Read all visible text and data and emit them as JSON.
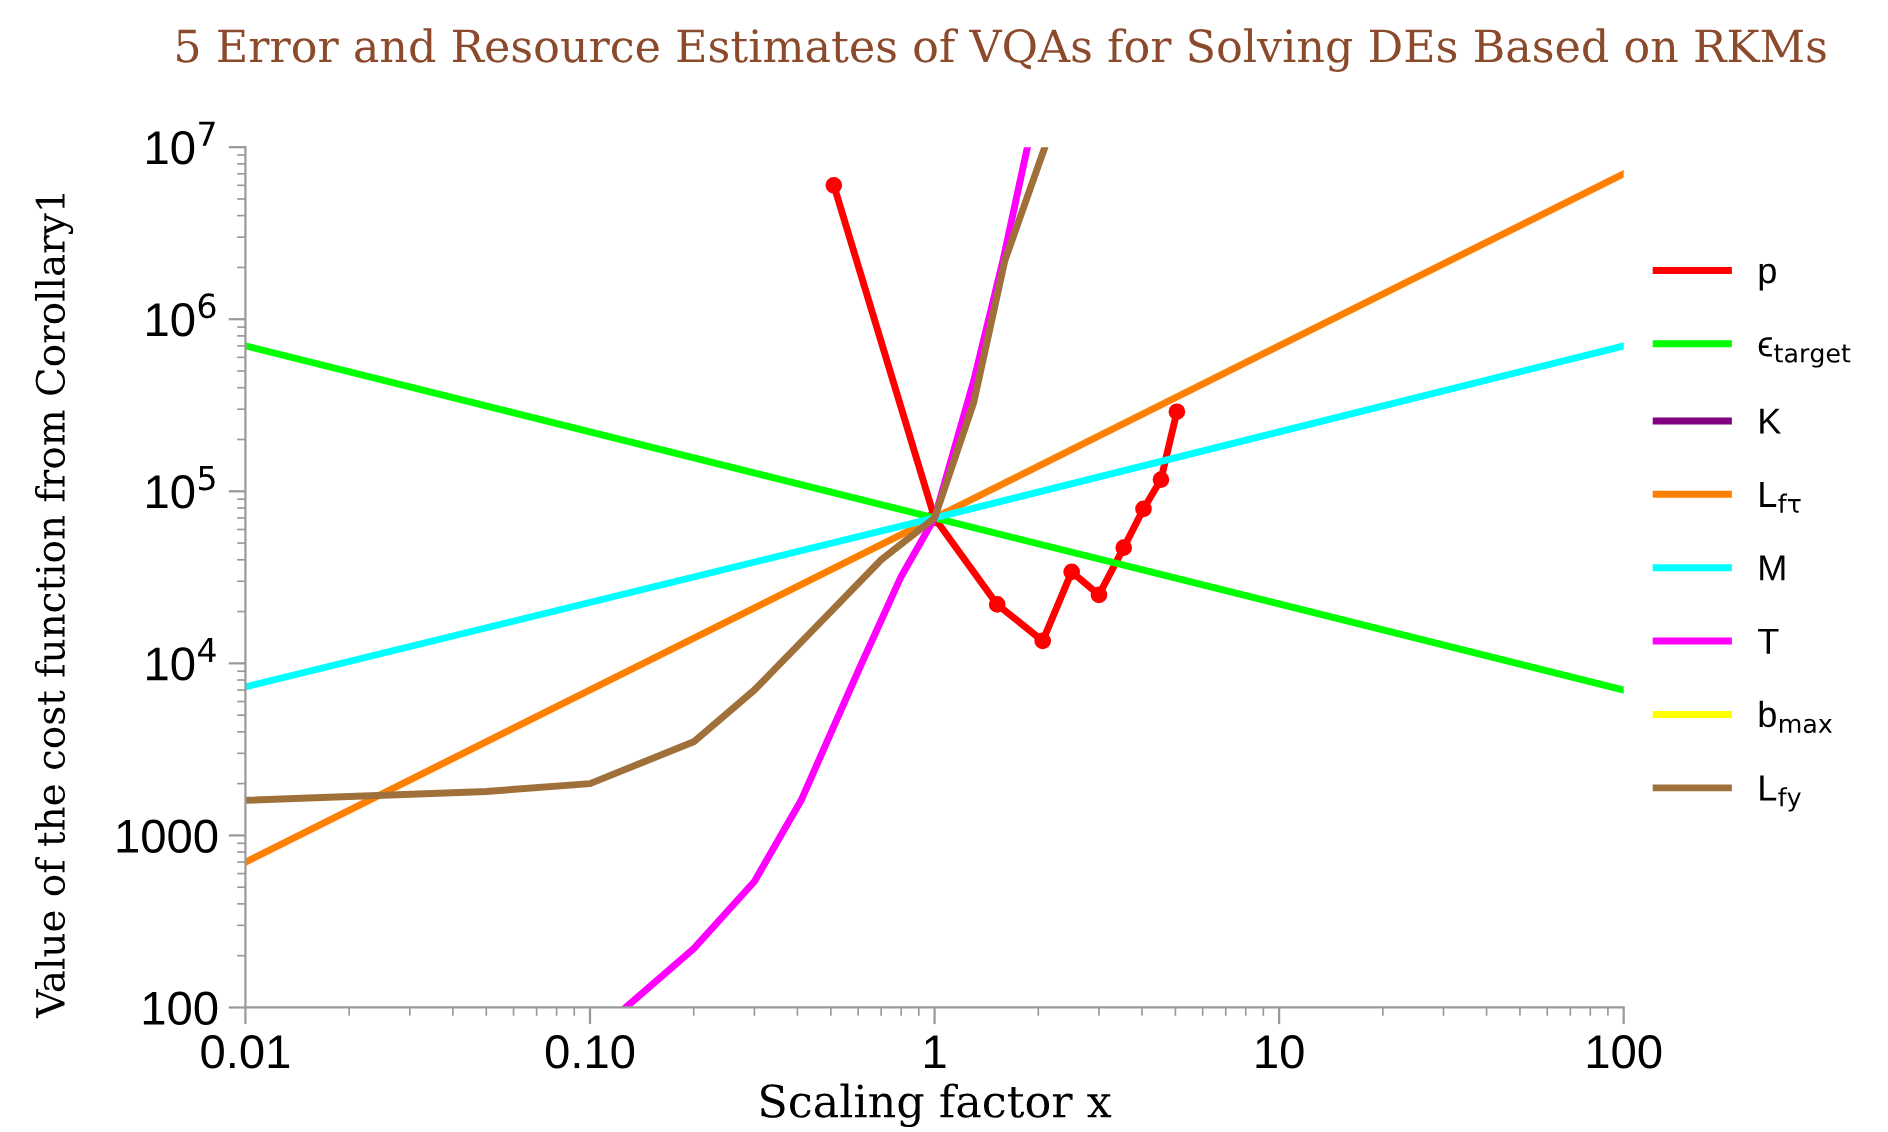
{
  "chart_data": {
    "type": "line",
    "xlabel": "Scaling factor x",
    "ylabel": "Value of the cost function from Corollary1",
    "annotations": [
      "5 Error and Resource Estimates of VQAs for Solving DEs Based on RKMs"
    ],
    "log": "xy",
    "xlim": [
      0.01,
      100
    ],
    "ylim": [
      100,
      10000000
    ],
    "xticks": [
      0.01,
      {
        "value": 0.1,
        "label": "0.10"
      },
      1,
      10,
      100
    ],
    "yticks": [
      100,
      1000,
      {
        "value": 10000,
        "label": "10$^{4}$"
      },
      {
        "value": 100000,
        "label": "10$^{5}$"
      },
      {
        "value": 1000000,
        "label": "10$^{6}$"
      },
      {
        "value": 10000000,
        "label": "10$^{7}$"
      }
    ],
    "grid": false,
    "legend": "right",
    "series": [
      {
        "name": "p",
        "color": "#ff0000",
        "marker": "circle",
        "x": [
          0.51,
          1,
          1.52,
          2.06,
          2.5,
          3.0,
          3.54,
          4.04,
          4.54,
          5.05
        ],
        "values": [
          6000000,
          70000,
          22000,
          13500,
          34000,
          25000,
          47000,
          79000,
          117000,
          290000
        ]
      },
      {
        "name": "ϵ$_{target}$",
        "color": "#00ff00",
        "x": [
          0.01,
          1,
          100
        ],
        "values": [
          700000,
          70000,
          7000
        ]
      },
      {
        "name": "K",
        "color": "#800080"
      },
      {
        "name": "L$_{fτ}$",
        "color": "#ff8000",
        "x": [
          0.01,
          1,
          100
        ],
        "values": [
          700,
          70000,
          7000000
        ]
      },
      {
        "name": "M",
        "color": "#00ffff",
        "x": [
          0.01,
          1,
          100
        ],
        "values": [
          7300,
          70000,
          700000
        ]
      },
      {
        "name": "T",
        "color": "#ff00ff",
        "x": [
          0.127,
          0.2,
          0.3,
          0.41,
          0.6,
          0.8,
          1,
          1.3,
          1.58,
          1.86
        ],
        "values": [
          100,
          220,
          540,
          1600,
          9000,
          32000,
          70000,
          440000,
          2200000,
          10000000
        ]
      },
      {
        "name": "b$_{max}$",
        "color": "#ffff00"
      },
      {
        "name": "L$_{fy}$",
        "color": "#a0703a",
        "x": [
          0.01,
          0.05,
          0.1,
          0.2,
          0.3,
          0.5,
          0.7,
          1,
          1.3,
          1.6,
          2.09
        ],
        "values": [
          1600,
          1800,
          2000,
          3500,
          7000,
          20000,
          40000,
          70000,
          330000,
          2200000,
          10000000
        ]
      }
    ]
  }
}
